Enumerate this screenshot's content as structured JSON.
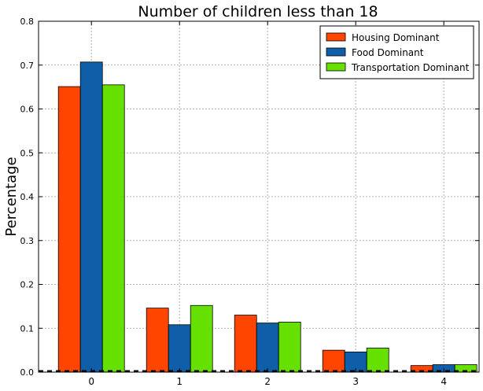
{
  "chart_data": {
    "type": "bar",
    "title": "Number of children less than 18",
    "xlabel": "",
    "ylabel": "Percentage",
    "categories": [
      "0",
      "1",
      "2",
      "3",
      "4"
    ],
    "ylim": [
      0,
      0.8
    ],
    "xlim": [
      -0.6,
      4.4
    ],
    "yticks": [
      "0.0",
      "0.1",
      "0.2",
      "0.3",
      "0.4",
      "0.5",
      "0.6",
      "0.7",
      "0.8"
    ],
    "grid": true,
    "legend_position": "top-right",
    "baseline_style": "dashed",
    "series": [
      {
        "name": "Housing Dominant",
        "color": "#ff4500",
        "values": [
          0.651,
          0.146,
          0.13,
          0.05,
          0.015
        ]
      },
      {
        "name": "Food Dominant",
        "color": "#0e5fa8",
        "values": [
          0.707,
          0.108,
          0.112,
          0.046,
          0.017
        ]
      },
      {
        "name": "Transportation Dominant",
        "color": "#66e000",
        "values": [
          0.655,
          0.152,
          0.114,
          0.055,
          0.017
        ]
      }
    ]
  }
}
